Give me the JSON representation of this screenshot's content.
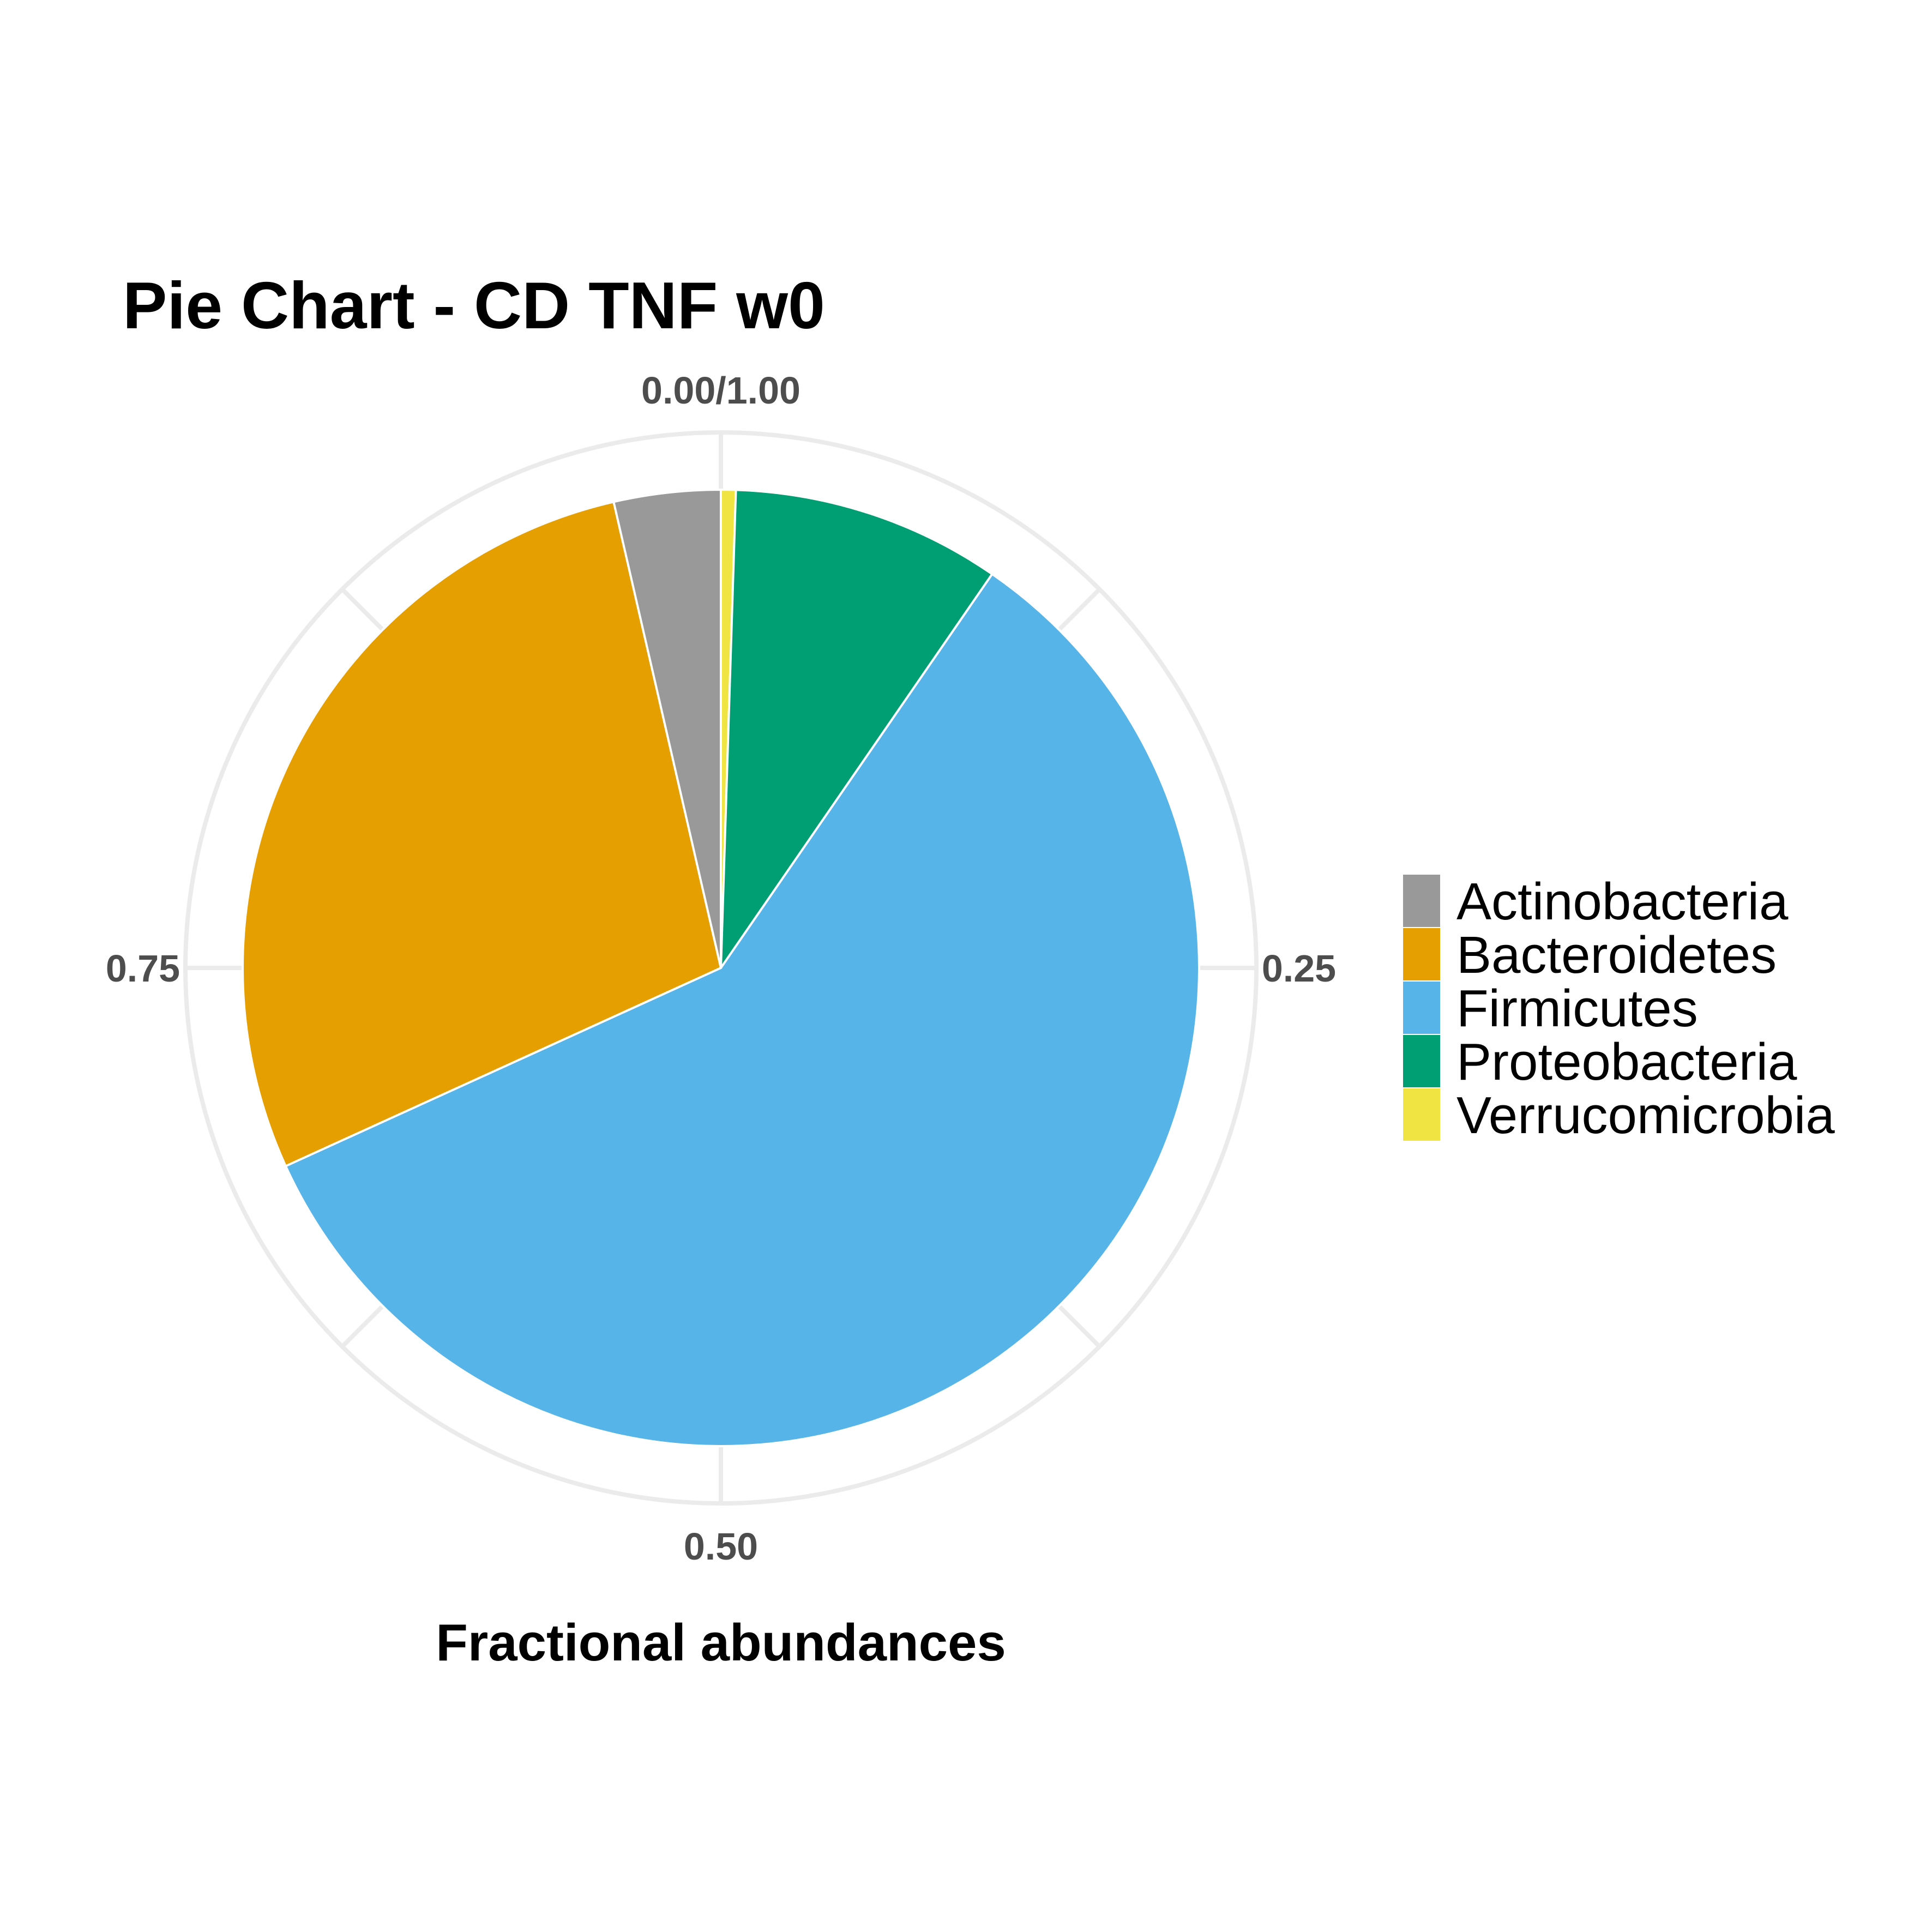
{
  "chart_data": {
    "type": "pie",
    "title": "Pie Chart - CD TNF w0",
    "xlabel": "Fractional abundances",
    "ylabel": "",
    "categories": [
      "Actinobacteria",
      "Bacteroidetes",
      "Firmicutes",
      "Proteobacteria",
      "Verrucomicrobia"
    ],
    "values": [
      0.036,
      0.282,
      0.586,
      0.091,
      0.005
    ],
    "colors": [
      "#999999",
      "#E69F00",
      "#56B4E9",
      "#009E73",
      "#F0E442"
    ],
    "stack_order_clockwise_from_top": [
      "Verrucomicrobia",
      "Proteobacteria",
      "Firmicutes",
      "Bacteroidetes",
      "Actinobacteria"
    ],
    "tick_values": [
      0,
      0.25,
      0.5,
      0.75
    ],
    "tick_labels": [
      "0.00/1.00",
      "0.25",
      "0.50",
      "0.75"
    ],
    "grid": true,
    "legend_position": "right"
  }
}
